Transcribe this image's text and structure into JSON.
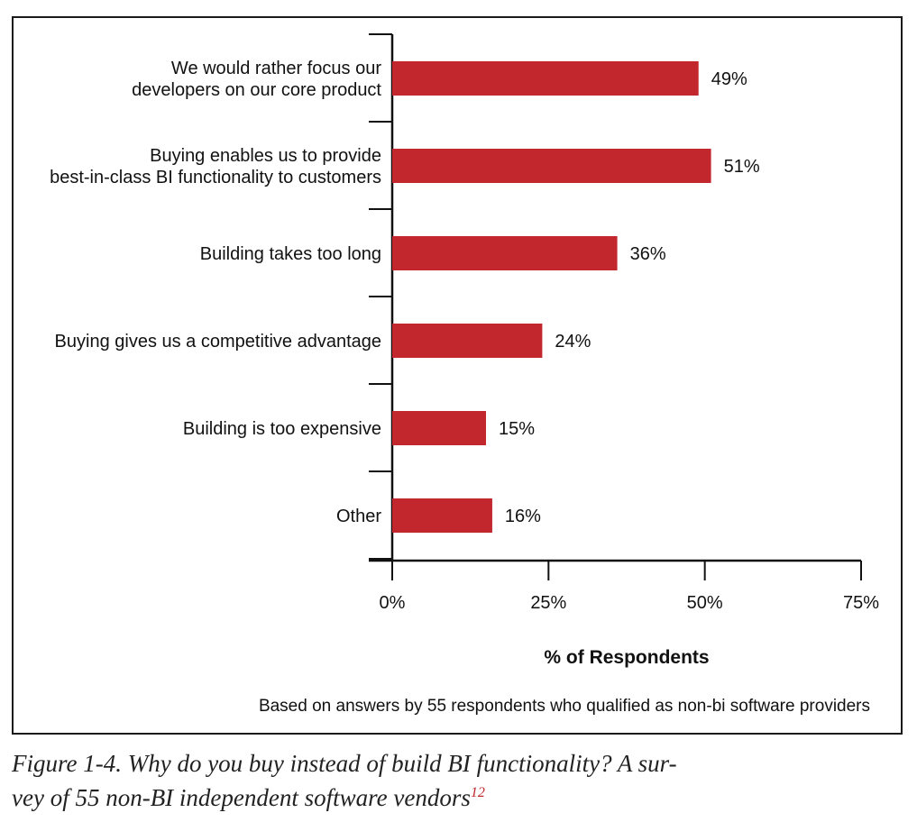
{
  "chart_data": {
    "type": "bar",
    "orientation": "horizontal",
    "categories": [
      [
        "We would rather focus our",
        "developers on our core product"
      ],
      [
        "Buying enables us to provide",
        "best-in-class BI functionality to customers"
      ],
      [
        "Building takes too long"
      ],
      [
        "Buying gives us a competitive advantage"
      ],
      [
        "Building is too expensive"
      ],
      [
        "Other"
      ]
    ],
    "values": [
      49,
      51,
      36,
      24,
      15,
      16
    ],
    "value_labels": [
      "49%",
      "51%",
      "36%",
      "24%",
      "15%",
      "16%"
    ],
    "xlim": [
      0,
      75
    ],
    "xticks": [
      0,
      25,
      50,
      75
    ],
    "xtick_labels": [
      "0%",
      "25%",
      "50%",
      "75%"
    ],
    "xlabel": "% of Respondents",
    "note": "Based on answers by 55 respondents who qualified as non-bi software providers",
    "bar_color": "#c1272d",
    "grid": false
  },
  "caption": {
    "text": "Figure 1-4. Why do you buy instead of build BI functionality? A survey of 55 non-BI independent software vendors",
    "line1": "Figure 1-4. Why do you buy instead of build BI functionality? A sur-",
    "line2": "vey of 55 non-BI independent software vendors",
    "footnote": "12"
  }
}
